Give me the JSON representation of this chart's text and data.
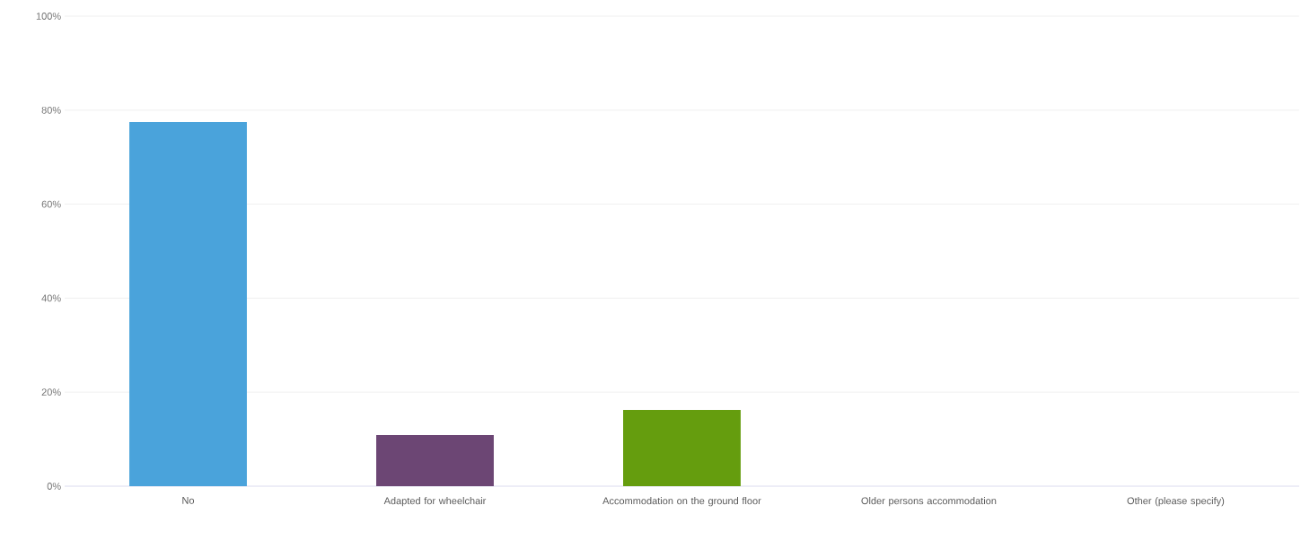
{
  "chart_data": {
    "type": "bar",
    "categories": [
      "No",
      "Adapted for wheelchair",
      "Accommodation on the ground floor",
      "Older persons accommodation",
      "Other (please specify)"
    ],
    "values": [
      77.5,
      10.9,
      16.2,
      0,
      0
    ],
    "colors": [
      "#4aa3db",
      "#6c4674",
      "#659d0e",
      "#4aa3db",
      "#4aa3db"
    ],
    "ylim": [
      0,
      100
    ],
    "yticks": [
      {
        "value": 0,
        "label": "0%"
      },
      {
        "value": 20,
        "label": "20%"
      },
      {
        "value": 40,
        "label": "40%"
      },
      {
        "value": 60,
        "label": "60%"
      },
      {
        "value": 80,
        "label": "80%"
      },
      {
        "value": 100,
        "label": "100%"
      }
    ],
    "grid": "y"
  }
}
